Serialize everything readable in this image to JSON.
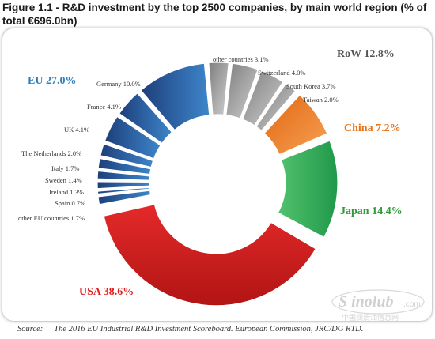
{
  "figure": {
    "title": "Figure 1.1  - R&D investment by the top 2500 companies, by main world region (% of total €696.0bn)",
    "source_prefix": "Source:",
    "source": "The 2016 EU Industrial R&D Investment Scoreboard. European Commission, JRC/DG RTD."
  },
  "watermark": {
    "brand": "S inolub",
    "domain": ".com",
    "subtext": "中国润滑油信息网"
  },
  "chart_data": {
    "type": "donut",
    "total": "€696.0bn",
    "regions": [
      {
        "label": "RoW 12.8%",
        "value": 12.8,
        "color": "#ff2a2a"
      },
      {
        "label": "China 7.2%",
        "value": 7.2,
        "color": "#ef7b1f"
      },
      {
        "label": "Japan 14.4%",
        "value": 14.4,
        "color": "#2e9a3a"
      },
      {
        "label": "USA 38.6%",
        "value": 38.6,
        "color": "#e02020"
      },
      {
        "label": "EU 27.0%",
        "value": 27.0,
        "color": "#2f7fbd"
      }
    ],
    "slices": [
      {
        "region": "RoW",
        "label": "other countries 3.1%",
        "value": 3.1,
        "color": "#9a9a9a"
      },
      {
        "region": "RoW",
        "label": "Switzerland 4.0%",
        "value": 4.0,
        "color": "#a6a6a6"
      },
      {
        "region": "RoW",
        "label": "South Korea 3.7%",
        "value": 3.7,
        "color": "#b2b2b2"
      },
      {
        "region": "RoW",
        "label": "Taiwan 2.0%",
        "value": 2.0,
        "color": "#bdbdbd"
      },
      {
        "region": "China",
        "label": "",
        "value": 7.2,
        "color": "#ef7b1f"
      },
      {
        "region": "Japan",
        "label": "",
        "value": 14.4,
        "color": "#22a84a"
      },
      {
        "region": "USA",
        "label": "",
        "value": 38.6,
        "color": "#d42222"
      },
      {
        "region": "EU",
        "label": "other EU countries 1.7%",
        "value": 1.7,
        "color": "#2f5f98"
      },
      {
        "region": "EU",
        "label": "Spain 0.7%",
        "value": 0.7,
        "color": "#2f5f98"
      },
      {
        "region": "EU",
        "label": "Ireland 1.3%",
        "value": 1.3,
        "color": "#2f5f98"
      },
      {
        "region": "EU",
        "label": "Sweden 1.4%",
        "value": 1.4,
        "color": "#2f5f98"
      },
      {
        "region": "EU",
        "label": "Italy 1.7%",
        "value": 1.7,
        "color": "#2f5f98"
      },
      {
        "region": "EU",
        "label": "The Netherlands 2.0%",
        "value": 2.0,
        "color": "#2f5f98"
      },
      {
        "region": "EU",
        "label": "UK 4.1%",
        "value": 4.1,
        "color": "#2f5f98"
      },
      {
        "region": "EU",
        "label": "France 4.1%",
        "value": 4.1,
        "color": "#2f5f98"
      },
      {
        "region": "EU",
        "label": "Germany 10.0%",
        "value": 10.0,
        "color": "#2f5f98"
      }
    ]
  }
}
